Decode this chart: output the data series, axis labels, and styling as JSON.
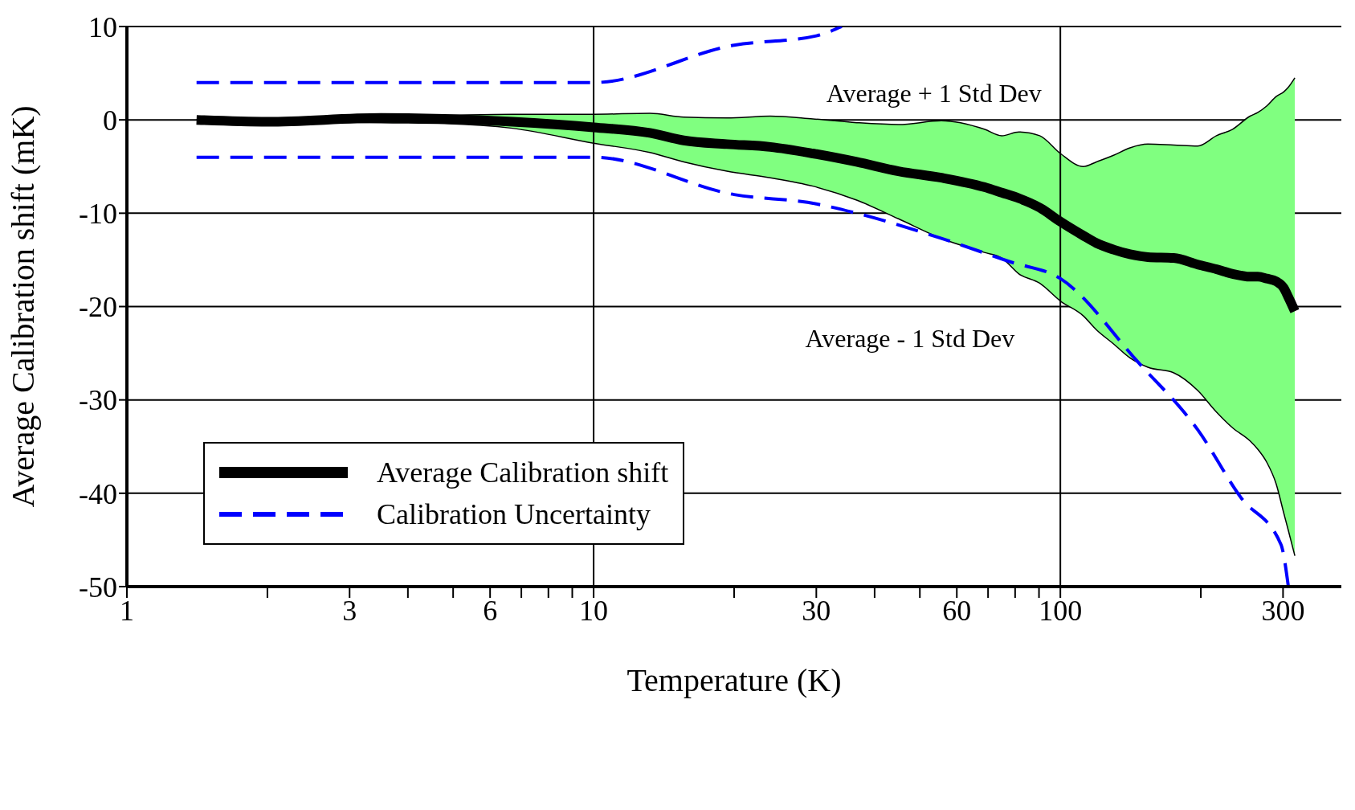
{
  "chart_data": {
    "type": "line",
    "xlabel": "Temperature (K)",
    "ylabel": "Average Calibration shift (mK)",
    "log": "x",
    "xlim": [
      1,
      400
    ],
    "ylim": [
      -50,
      10
    ],
    "xticks": [
      1,
      {
        "value": 2,
        "label": null
      },
      3,
      {
        "value": 4,
        "label": null
      },
      {
        "value": 5,
        "label": null
      },
      6,
      {
        "value": 7,
        "label": null
      },
      {
        "value": 8,
        "label": null
      },
      {
        "value": 9,
        "label": null
      },
      10,
      {
        "value": 20,
        "label": null
      },
      30,
      {
        "value": 40,
        "label": null
      },
      {
        "value": 50,
        "label": null
      },
      60,
      {
        "value": 70,
        "label": null
      },
      {
        "value": 80,
        "label": null
      },
      {
        "value": 90,
        "label": null
      },
      100,
      {
        "value": 200,
        "label": null
      },
      300
    ],
    "yticks": [
      -50,
      -40,
      -30,
      -20,
      -10,
      0,
      10
    ],
    "grid": "y",
    "legend": "bottom left",
    "marker": "none",
    "ref_lines": [
      {
        "axis": "x",
        "value": 10,
        "color": "#000000"
      },
      {
        "axis": "x",
        "value": 100,
        "color": "#000000"
      }
    ],
    "annotations": [
      "Average + 1 Std Dev",
      "Average - 1 Std Dev"
    ],
    "series": [
      {
        "color": "#000000",
        "line_style": "solid",
        "x": [
          1.41,
          2,
          3.5,
          4.8,
          6.7,
          10,
          13.2,
          15.6,
          19.3,
          23.9,
          29.5,
          36.6,
          45,
          55.6,
          68.7,
          74.9,
          81.5,
          90.3,
          100,
          112,
          119.5,
          130,
          141,
          154,
          175,
          197,
          216,
          234,
          255,
          265,
          277,
          290,
          301,
          308,
          318
        ],
        "values": [
          0,
          0.1,
          0.4,
          0.5,
          0.6,
          0.6,
          0.7,
          0.3,
          0.2,
          0.4,
          0.1,
          -0.3,
          -0.5,
          -0.1,
          -1.0,
          -1.7,
          -1.3,
          -1.7,
          -3.6,
          -5,
          -4.5,
          -3.8,
          -3.0,
          -2.6,
          -2.7,
          -2.8,
          -1.7,
          -1.0,
          0.4,
          0.8,
          1.5,
          2.5,
          3.0,
          3.5,
          4.5
        ]
      },
      {
        "color": "#000000",
        "line_style": "solid",
        "x": [
          1.41,
          2,
          3.5,
          4.8,
          6.7,
          10,
          13.2,
          15.6,
          19.3,
          23.9,
          29.5,
          36.6,
          45,
          55.6,
          68.7,
          74.9,
          81.5,
          90.3,
          100,
          112,
          119.5,
          130,
          141,
          154,
          175,
          197,
          216,
          234,
          255,
          265,
          277,
          290,
          301,
          308,
          318
        ],
        "values": [
          0,
          -0.2,
          -0.3,
          -0.4,
          -0.9,
          -2.5,
          -3.5,
          -4.5,
          -5.5,
          -6.2,
          -7.1,
          -8.6,
          -10.6,
          -12.7,
          -14.2,
          -14.8,
          -16.5,
          -17.5,
          -19.4,
          -21,
          -22.5,
          -24,
          -25.5,
          -26.5,
          -27.1,
          -29,
          -31.3,
          -33,
          -34.4,
          -35.3,
          -36.7,
          -39,
          -42.1,
          -44,
          -46.7
        ]
      },
      {
        "name": "Average Calibration shift",
        "color": "#000000",
        "line_style": "solid",
        "x": [
          1.41,
          2,
          3.5,
          4.8,
          6.7,
          10,
          13.2,
          15.6,
          19.3,
          23.9,
          29.5,
          36.6,
          45,
          55.6,
          68.7,
          74.9,
          81.5,
          90.3,
          100,
          112,
          119.5,
          130,
          141,
          154,
          175,
          197,
          216,
          234,
          255,
          265,
          277,
          290,
          301,
          308,
          318
        ],
        "values": [
          0,
          -0.2,
          0.2,
          0.1,
          -0.2,
          -0.8,
          -1.4,
          -2.2,
          -2.6,
          -2.9,
          -3.6,
          -4.5,
          -5.5,
          -6.2,
          -7.2,
          -7.8,
          -8.4,
          -9.4,
          -10.9,
          -12.4,
          -13.2,
          -13.9,
          -14.4,
          -14.7,
          -14.8,
          -15.5,
          -16,
          -16.5,
          -16.8,
          -16.8,
          -17,
          -17.3,
          -18,
          -19,
          -20.5
        ],
        "upper": [
          0,
          0.1,
          0.4,
          0.5,
          0.6,
          0.6,
          0.7,
          0.3,
          0.2,
          0.4,
          0.1,
          -0.3,
          -0.5,
          -0.1,
          -1.0,
          -1.7,
          -1.3,
          -1.7,
          -3.6,
          -5,
          -4.5,
          -3.8,
          -3.0,
          -2.6,
          -2.7,
          -2.8,
          -1.7,
          -1.0,
          0.4,
          0.8,
          1.5,
          2.5,
          3.0,
          3.5,
          4.5
        ],
        "lower": [
          0,
          -0.2,
          -0.3,
          -0.4,
          -0.9,
          -2.5,
          -3.5,
          -4.5,
          -5.5,
          -6.2,
          -7.1,
          -8.6,
          -10.6,
          -12.7,
          -14.2,
          -14.8,
          -16.5,
          -17.5,
          -19.4,
          -21,
          -22.5,
          -24,
          -25.5,
          -26.5,
          -27.1,
          -29,
          -31.3,
          -33,
          -34.4,
          -35.3,
          -36.7,
          -39,
          -42.1,
          -44,
          -46.7
        ]
      },
      {
        "name": "Calibration Uncertainty",
        "color": "#0000ff",
        "line_style": "dashed",
        "x": [
          1.41,
          10,
          20,
          30,
          34
        ],
        "values": [
          4,
          4,
          8,
          9,
          10
        ]
      },
      {
        "color": "#0000ff",
        "line_style": "dashed",
        "x": [
          1.41,
          10,
          20,
          30,
          36.6,
          55.6,
          78,
          100,
          147,
          197,
          244,
          297,
          308
        ],
        "values": [
          -4,
          -4,
          -8,
          -9,
          -10,
          -12.7,
          -15.2,
          -17,
          -26,
          -33.2,
          -40.5,
          -45.5,
          -50
        ]
      }
    ]
  }
}
